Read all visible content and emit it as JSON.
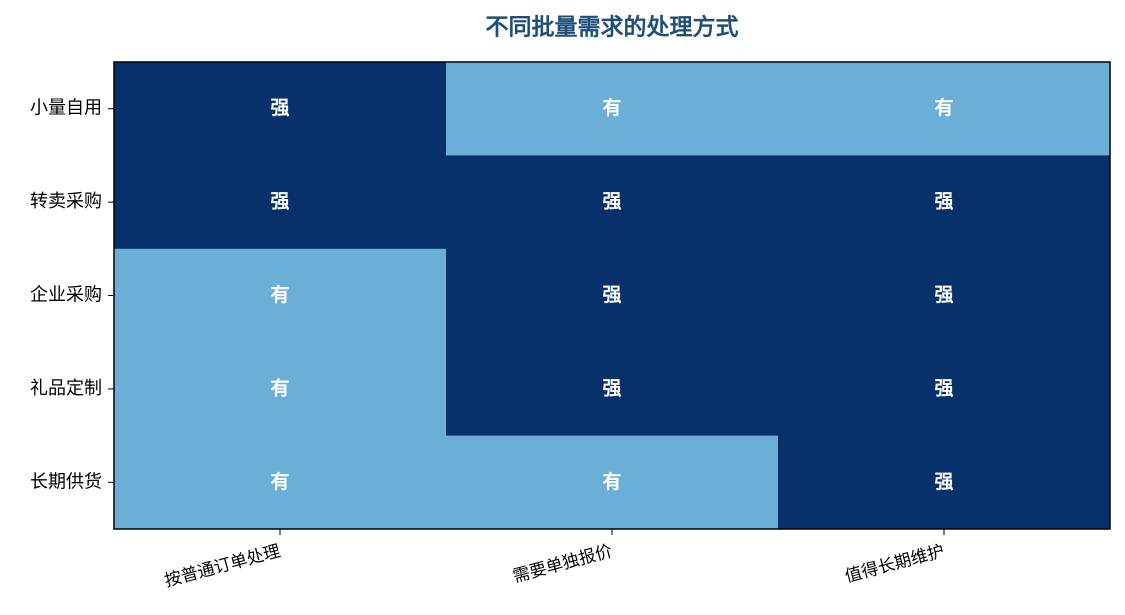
{
  "chart_data": {
    "type": "heatmap",
    "title": "不同批量需求的处理方式",
    "rows": [
      "小量自用",
      "转卖采购",
      "企业采购",
      "礼品定制",
      "长期供货"
    ],
    "columns": [
      "按普通订单处理",
      "需要单独报价",
      "值得长期维护"
    ],
    "cells": [
      [
        "强",
        "有",
        "有"
      ],
      [
        "强",
        "强",
        "强"
      ],
      [
        "有",
        "强",
        "强"
      ],
      [
        "有",
        "强",
        "强"
      ],
      [
        "有",
        "有",
        "强"
      ]
    ],
    "cell_colors": [
      [
        "#08306b",
        "#6baed6",
        "#6baed6"
      ],
      [
        "#08306b",
        "#08306b",
        "#08306b"
      ],
      [
        "#6baed6",
        "#08306b",
        "#08306b"
      ],
      [
        "#6baed6",
        "#08306b",
        "#08306b"
      ],
      [
        "#6baed6",
        "#6baed6",
        "#08306b"
      ]
    ]
  }
}
